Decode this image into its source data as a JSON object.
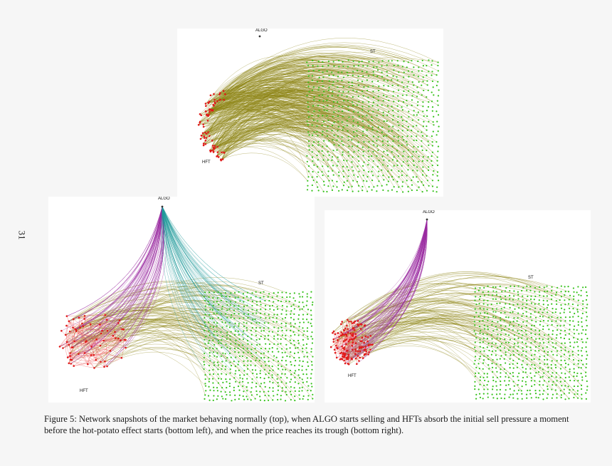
{
  "page_number": "31",
  "panels": {
    "top": {
      "algo": "ALGO",
      "st": "ST",
      "hft": "HFT"
    },
    "bottom_left": {
      "algo": "ALGO",
      "st": "ST",
      "hft": "HFT"
    },
    "bottom_right": {
      "algo": "ALGO",
      "st": "ST",
      "hft": "HFT"
    }
  },
  "colors": {
    "st_nodes": "#37c21c",
    "hft_nodes": "#e01a1a",
    "hft_st_edges": "#8c8412",
    "algo_hft_edges": "#9a2aa0",
    "algo_st_edges": "#1e9a9a",
    "hft_hft_edges": "#f06a6a"
  },
  "caption": "Figure 5: Network snapshots of the market behaving normally (top), when ALGO starts selling and HFTs absorb the initial sell pressure a moment before the hot-potato effect starts (bottom left), and when the price reaches its trough (bottom right)."
}
